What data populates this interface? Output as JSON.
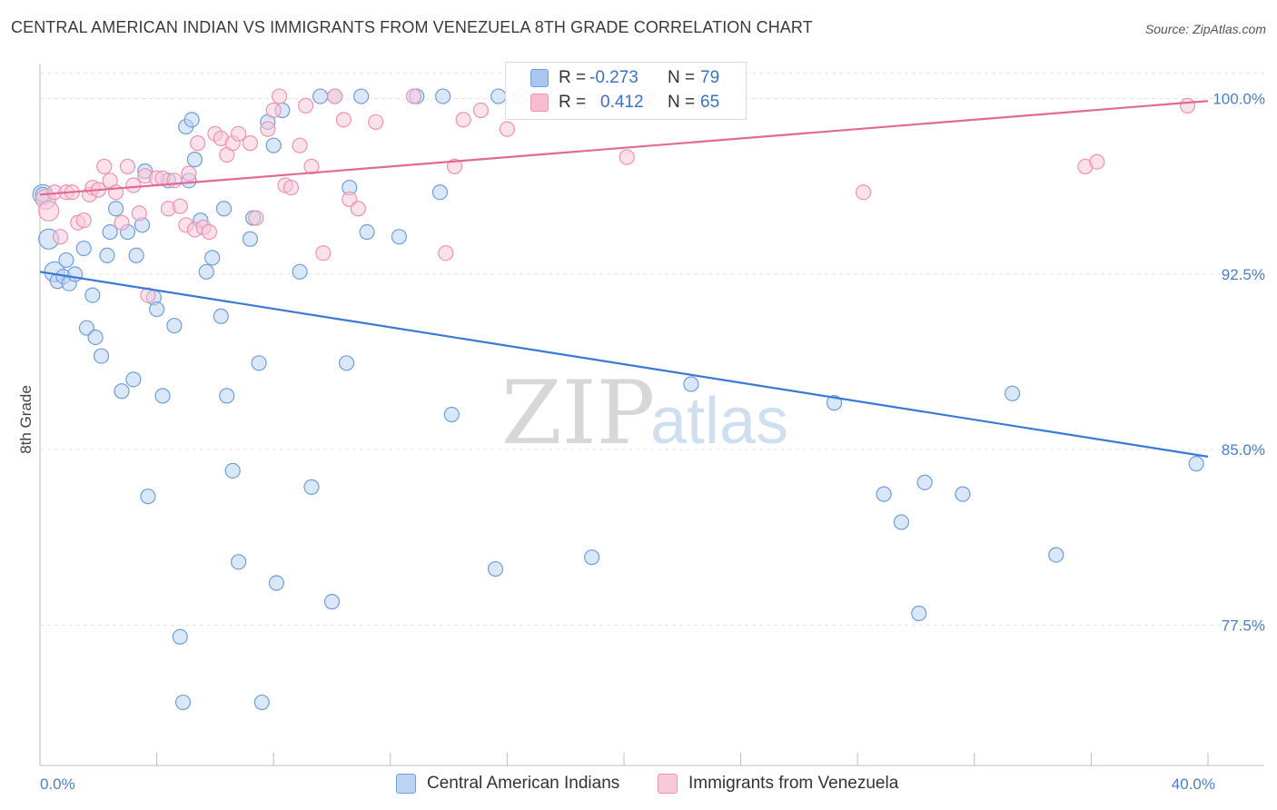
{
  "header": {
    "title": "CENTRAL AMERICAN INDIAN VS IMMIGRANTS FROM VENEZUELA 8TH GRADE CORRELATION CHART",
    "source": "Source: ZipAtlas.com"
  },
  "watermark": {
    "zip": "ZIP",
    "atlas": "atlas"
  },
  "legend": {
    "r_label": "R =",
    "n_label": "N =",
    "rows": [
      {
        "r": "-0.273",
        "n": "79",
        "color": "#a9c7ee"
      },
      {
        "r": "0.412",
        "n": "65",
        "color": "#f7bcd0"
      }
    ]
  },
  "chart_data": {
    "type": "scatter",
    "title": "CENTRAL AMERICAN INDIAN VS IMMIGRANTS FROM VENEZUELA 8TH GRADE CORRELATION CHART",
    "xlabel": "",
    "ylabel": "8th Grade",
    "xlim": [
      0,
      40
    ],
    "ylim": [
      71.5,
      101.5
    ],
    "x_ticks": [
      {
        "value": 0,
        "label": "0.0%"
      },
      {
        "value": 40,
        "label": "40.0%"
      }
    ],
    "y_ticks": [
      {
        "value": 100,
        "label": "100.0%"
      },
      {
        "value": 92.5,
        "label": "92.5%"
      },
      {
        "value": 85,
        "label": "85.0%"
      },
      {
        "value": 77.5,
        "label": "77.5%"
      }
    ],
    "grid": true,
    "legend_position": "bottom",
    "series": [
      {
        "name": "Central American Indians",
        "color": "#6f9fdc",
        "fill": "#bcd4f2",
        "trend": {
          "x": [
            0,
            40
          ],
          "y": [
            92.6,
            84.7
          ]
        },
        "points": [
          [
            0.1,
            95.9
          ],
          [
            0.3,
            94
          ],
          [
            0.5,
            92.6
          ],
          [
            0.6,
            92.2
          ],
          [
            0.8,
            92.4
          ],
          [
            0.9,
            93.1
          ],
          [
            1,
            92.1
          ],
          [
            1.2,
            92.5
          ],
          [
            1.5,
            93.6
          ],
          [
            1.6,
            90.2
          ],
          [
            1.8,
            91.6
          ],
          [
            1.9,
            89.8
          ],
          [
            2.1,
            89
          ],
          [
            2.3,
            93.3
          ],
          [
            2.4,
            94.3
          ],
          [
            2.6,
            95.3
          ],
          [
            2.8,
            87.5
          ],
          [
            3,
            94.3
          ],
          [
            3.2,
            88
          ],
          [
            3.3,
            93.3
          ],
          [
            3.5,
            94.6
          ],
          [
            3.7,
            83
          ],
          [
            3.6,
            96.9
          ],
          [
            3.9,
            91.5
          ],
          [
            4.0,
            91.0
          ],
          [
            4.2,
            87.3
          ],
          [
            4.4,
            96.5
          ],
          [
            4.6,
            90.3
          ],
          [
            4.8,
            77
          ],
          [
            4.9,
            74.2
          ],
          [
            5.0,
            98.8
          ],
          [
            5.1,
            96.5
          ],
          [
            5.3,
            97.4
          ],
          [
            5.2,
            99.1
          ],
          [
            5.5,
            94.8
          ],
          [
            5.7,
            92.6
          ],
          [
            5.9,
            93.2
          ],
          [
            6.2,
            90.7
          ],
          [
            6.3,
            95.3
          ],
          [
            6.4,
            87.3
          ],
          [
            6.6,
            84.1
          ],
          [
            6.8,
            80.2
          ],
          [
            7.2,
            94
          ],
          [
            7.3,
            94.9
          ],
          [
            7.5,
            88.7
          ],
          [
            7.6,
            74.2
          ],
          [
            7.8,
            99
          ],
          [
            8.0,
            98
          ],
          [
            8.1,
            79.3
          ],
          [
            8.3,
            99.5
          ],
          [
            8.9,
            92.6
          ],
          [
            9.3,
            83.4
          ],
          [
            9.6,
            100.1
          ],
          [
            10.0,
            78.5
          ],
          [
            10.1,
            100.1
          ],
          [
            10.5,
            88.7
          ],
          [
            10.6,
            96.2
          ],
          [
            11.0,
            100.1
          ],
          [
            11.2,
            94.3
          ],
          [
            12.3,
            94.1
          ],
          [
            12.9,
            100.1
          ],
          [
            13.7,
            96.0
          ],
          [
            13.8,
            100.1
          ],
          [
            14.1,
            86.5
          ],
          [
            15.6,
            79.9
          ],
          [
            15.7,
            100.1
          ],
          [
            17.7,
            100.1
          ],
          [
            18.9,
            80.4
          ],
          [
            22.3,
            87.8
          ],
          [
            27.2,
            87.0
          ],
          [
            28.9,
            83.1
          ],
          [
            29.5,
            81.9
          ],
          [
            30.1,
            78.0
          ],
          [
            30.3,
            83.6
          ],
          [
            31.6,
            83.1
          ],
          [
            33.3,
            87.4
          ],
          [
            34.8,
            80.5
          ],
          [
            39.6,
            84.4
          ],
          [
            0.1,
            95.9
          ]
        ]
      },
      {
        "name": "Immigrants from Venezuela",
        "color": "#ef93b2",
        "fill": "#f8c9d9",
        "trend": {
          "x": [
            0,
            40
          ],
          "y": [
            95.9,
            99.9
          ]
        },
        "points": [
          [
            0.2,
            95.7
          ],
          [
            0.3,
            95.2
          ],
          [
            0.5,
            96.0
          ],
          [
            0.7,
            94.1
          ],
          [
            0.9,
            96.0
          ],
          [
            1.1,
            96.0
          ],
          [
            1.3,
            94.7
          ],
          [
            1.5,
            94.8
          ],
          [
            1.7,
            95.9
          ],
          [
            1.8,
            96.2
          ],
          [
            2.0,
            96.1
          ],
          [
            2.2,
            97.1
          ],
          [
            2.4,
            96.5
          ],
          [
            2.6,
            96.0
          ],
          [
            2.8,
            94.7
          ],
          [
            3.0,
            97.1
          ],
          [
            3.2,
            96.3
          ],
          [
            3.4,
            95.1
          ],
          [
            3.6,
            96.7
          ],
          [
            3.7,
            91.6
          ],
          [
            4.0,
            96.6
          ],
          [
            4.2,
            96.6
          ],
          [
            4.4,
            95.3
          ],
          [
            4.6,
            96.5
          ],
          [
            4.8,
            95.4
          ],
          [
            5.0,
            94.6
          ],
          [
            5.1,
            96.8
          ],
          [
            5.3,
            94.4
          ],
          [
            5.4,
            98.1
          ],
          [
            5.6,
            94.5
          ],
          [
            5.8,
            94.3
          ],
          [
            6.0,
            98.5
          ],
          [
            6.2,
            98.3
          ],
          [
            6.4,
            97.6
          ],
          [
            6.6,
            98.1
          ],
          [
            6.8,
            98.5
          ],
          [
            7.2,
            98.1
          ],
          [
            7.4,
            94.9
          ],
          [
            7.8,
            98.7
          ],
          [
            8.0,
            99.5
          ],
          [
            8.2,
            100.1
          ],
          [
            8.4,
            96.3
          ],
          [
            8.6,
            96.2
          ],
          [
            8.9,
            98.0
          ],
          [
            9.1,
            99.7
          ],
          [
            9.3,
            97.1
          ],
          [
            9.7,
            93.4
          ],
          [
            10.1,
            100.1
          ],
          [
            10.4,
            99.1
          ],
          [
            10.6,
            95.7
          ],
          [
            10.9,
            95.3
          ],
          [
            11.5,
            99.0
          ],
          [
            12.8,
            100.1
          ],
          [
            13.9,
            93.4
          ],
          [
            14.2,
            97.1
          ],
          [
            14.5,
            99.1
          ],
          [
            15.1,
            99.5
          ],
          [
            16.0,
            98.7
          ],
          [
            16.5,
            100.1
          ],
          [
            20.1,
            97.5
          ],
          [
            20.8,
            100.1
          ],
          [
            28.2,
            96.0
          ],
          [
            35.8,
            97.1
          ],
          [
            36.2,
            97.3
          ],
          [
            39.3,
            99.7
          ]
        ]
      }
    ]
  }
}
